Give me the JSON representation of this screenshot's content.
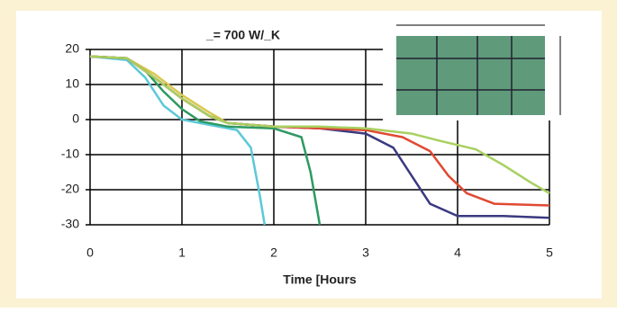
{
  "chart_data": {
    "type": "line",
    "title": "_= 700 W/_K",
    "x_label": "Time [Hours",
    "xlim": [
      0,
      5
    ],
    "ylim": [
      -30,
      20
    ],
    "xticks": [
      0,
      1,
      2,
      3,
      4,
      5
    ],
    "yticks": [
      -30,
      -20,
      -10,
      0,
      10,
      20
    ],
    "grid": true,
    "series": [
      {
        "color": "#5cc8d8",
        "x": [
          0,
          0.4,
          0.6,
          0.8,
          1.0,
          1.3,
          1.6,
          1.75,
          1.85,
          1.9
        ],
        "values": [
          18,
          17,
          12,
          4,
          0,
          -1.5,
          -3,
          -8,
          -22,
          -30
        ]
      },
      {
        "color": "#2e9a62",
        "x": [
          0,
          0.4,
          0.6,
          0.8,
          1.0,
          1.2,
          1.5,
          2.0,
          2.3,
          2.4,
          2.5
        ],
        "values": [
          18,
          17.5,
          14,
          8,
          3,
          -0.5,
          -2,
          -2.5,
          -5,
          -15,
          -30
        ]
      },
      {
        "color": "#d8c850",
        "x": [
          0,
          0.4,
          0.7,
          1.0,
          1.3,
          1.5,
          2.0,
          2.5
        ],
        "values": [
          18,
          17.5,
          13,
          7,
          2,
          -1,
          -2,
          -2
        ]
      },
      {
        "color": "#3a3a80",
        "x": [
          0,
          0.4,
          0.7,
          1.0,
          1.3,
          1.5,
          2.0,
          2.5,
          3.0,
          3.3,
          3.5,
          3.7,
          4.0,
          4.5,
          5.0
        ],
        "values": [
          18,
          17.5,
          12,
          6,
          1,
          -1,
          -2,
          -2.5,
          -4,
          -8,
          -16,
          -24,
          -27.5,
          -27.5,
          -28
        ]
      },
      {
        "color": "#e04a32",
        "x": [
          0,
          0.4,
          0.7,
          1.0,
          1.3,
          1.5,
          2.0,
          2.5,
          3.0,
          3.4,
          3.7,
          3.9,
          4.1,
          4.4,
          5.0
        ],
        "values": [
          18,
          17.5,
          12,
          6,
          1,
          -1,
          -2,
          -2.5,
          -3,
          -5,
          -9,
          -16,
          -21,
          -24,
          -24.5
        ]
      },
      {
        "color": "#a8d060",
        "x": [
          0,
          0.4,
          0.7,
          1.0,
          1.3,
          1.5,
          2.0,
          2.5,
          3.0,
          3.5,
          3.8,
          4.2,
          4.5,
          4.8,
          5.0
        ],
        "values": [
          18,
          17.5,
          12,
          6,
          1,
          -1,
          -2,
          -2,
          -2.5,
          -4,
          -6,
          -8.5,
          -13,
          -18,
          -21
        ]
      }
    ]
  }
}
